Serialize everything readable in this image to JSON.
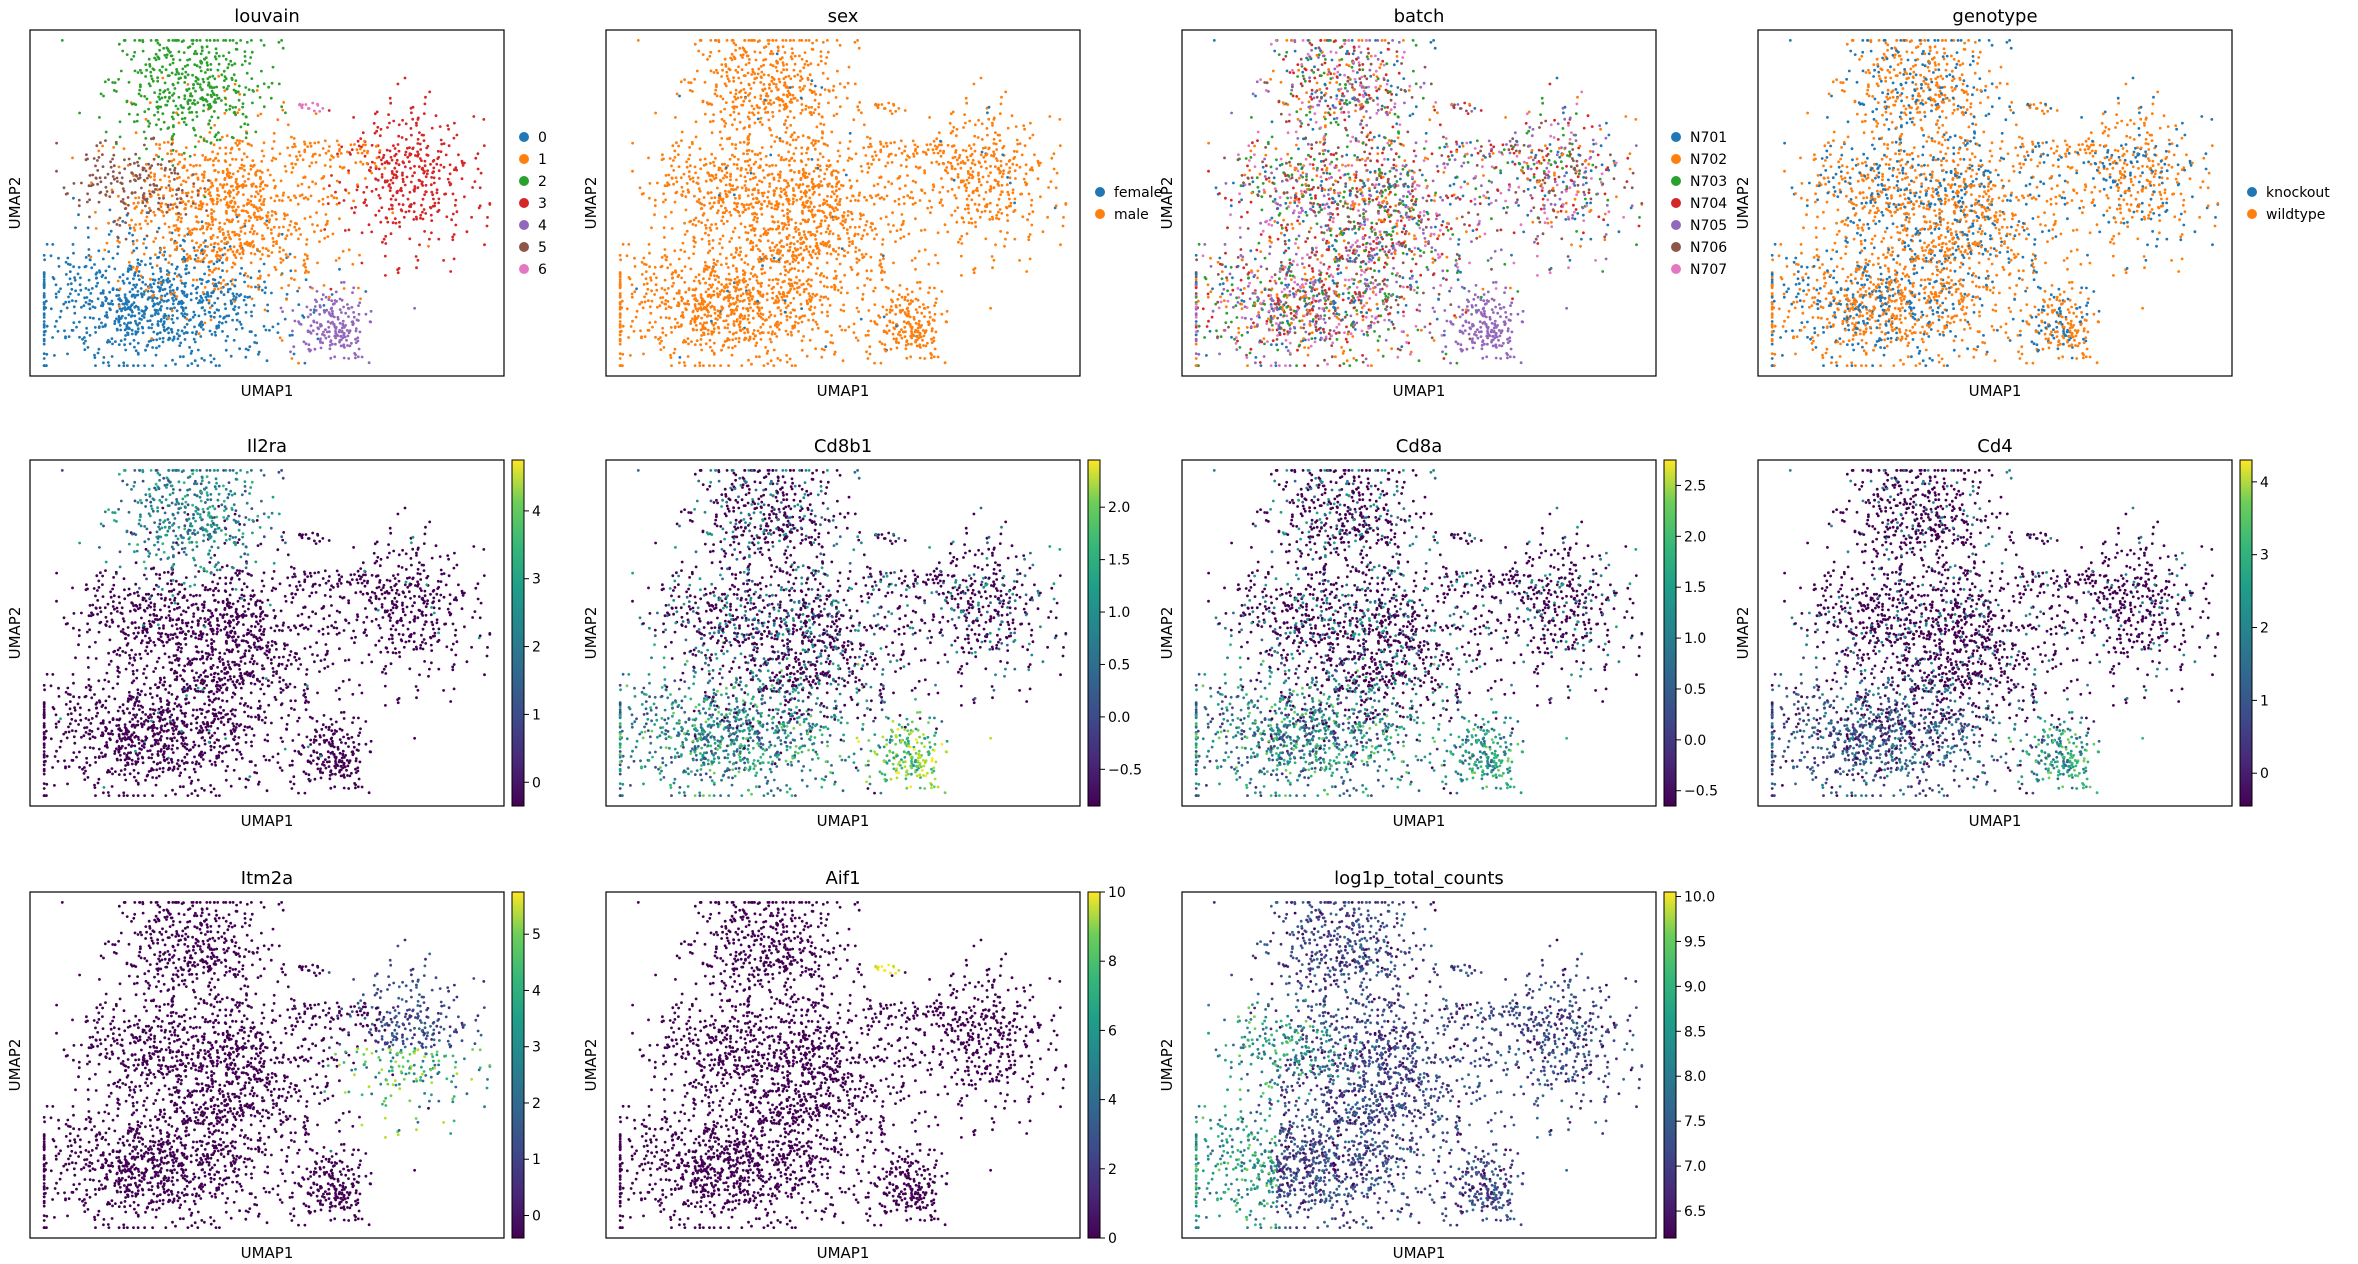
{
  "figure": {
    "panels": [
      {
        "title": "louvain",
        "type": "categorical",
        "xlabel": "UMAP1",
        "ylabel": "UMAP2",
        "legend": {
          "placement": "right",
          "items": [
            {
              "label": "0",
              "color": "#1f77b4"
            },
            {
              "label": "1",
              "color": "#ff7f0e"
            },
            {
              "label": "2",
              "color": "#2ca02c"
            },
            {
              "label": "3",
              "color": "#d62728"
            },
            {
              "label": "4",
              "color": "#9467bd"
            },
            {
              "label": "5",
              "color": "#8c564b"
            },
            {
              "label": "6",
              "color": "#e377c2"
            }
          ]
        }
      },
      {
        "title": "sex",
        "type": "categorical",
        "xlabel": "UMAP1",
        "ylabel": "UMAP2",
        "legend": {
          "placement": "right",
          "items": [
            {
              "label": "female",
              "color": "#1f77b4"
            },
            {
              "label": "male",
              "color": "#ff7f0e"
            }
          ]
        }
      },
      {
        "title": "batch",
        "type": "categorical",
        "xlabel": "UMAP1",
        "ylabel": "UMAP2",
        "legend": {
          "placement": "right",
          "items": [
            {
              "label": "N701",
              "color": "#1f77b4"
            },
            {
              "label": "N702",
              "color": "#ff7f0e"
            },
            {
              "label": "N703",
              "color": "#2ca02c"
            },
            {
              "label": "N704",
              "color": "#d62728"
            },
            {
              "label": "N705",
              "color": "#9467bd"
            },
            {
              "label": "N706",
              "color": "#8c564b"
            },
            {
              "label": "N707",
              "color": "#e377c2"
            }
          ]
        }
      },
      {
        "title": "genotype",
        "type": "categorical",
        "xlabel": "UMAP1",
        "ylabel": "UMAP2",
        "legend": {
          "placement": "right",
          "items": [
            {
              "label": "knockout",
              "color": "#1f77b4"
            },
            {
              "label": "wildtype",
              "color": "#ff7f0e"
            }
          ]
        }
      },
      {
        "title": "Il2ra",
        "type": "continuous",
        "xlabel": "UMAP1",
        "ylabel": "UMAP2",
        "colorbar": {
          "min": -0.35,
          "max": 4.75,
          "ticks": [
            "0",
            "1",
            "2",
            "3",
            "4"
          ],
          "tick_values": [
            0,
            1,
            2,
            3,
            4
          ]
        }
      },
      {
        "title": "Cd8b1",
        "type": "continuous",
        "xlabel": "UMAP1",
        "ylabel": "UMAP2",
        "colorbar": {
          "min": -0.85,
          "max": 2.45,
          "ticks": [
            "−0.5",
            "0.0",
            "0.5",
            "1.0",
            "1.5",
            "2.0"
          ],
          "tick_values": [
            -0.5,
            0,
            0.5,
            1.0,
            1.5,
            2.0
          ]
        }
      },
      {
        "title": "Cd8a",
        "type": "continuous",
        "xlabel": "UMAP1",
        "ylabel": "UMAP2",
        "colorbar": {
          "min": -0.65,
          "max": 2.75,
          "ticks": [
            "−0.5",
            "0.0",
            "0.5",
            "1.0",
            "1.5",
            "2.0",
            "2.5"
          ],
          "tick_values": [
            -0.5,
            0,
            0.5,
            1.0,
            1.5,
            2.0,
            2.5
          ]
        }
      },
      {
        "title": "Cd4",
        "type": "continuous",
        "xlabel": "UMAP1",
        "ylabel": "UMAP2",
        "colorbar": {
          "min": -0.45,
          "max": 4.3,
          "ticks": [
            "0",
            "1",
            "2",
            "3",
            "4"
          ],
          "tick_values": [
            0,
            1,
            2,
            3,
            4
          ]
        }
      },
      {
        "title": "Itm2a",
        "type": "continuous",
        "xlabel": "UMAP1",
        "ylabel": "UMAP2",
        "colorbar": {
          "min": -0.4,
          "max": 5.75,
          "ticks": [
            "0",
            "1",
            "2",
            "3",
            "4",
            "5"
          ],
          "tick_values": [
            0,
            1,
            2,
            3,
            4,
            5
          ]
        }
      },
      {
        "title": "Aif1",
        "type": "continuous",
        "xlabel": "UMAP1",
        "ylabel": "UMAP2",
        "colorbar": {
          "min": 0,
          "max": 10,
          "ticks": [
            "0",
            "2",
            "4",
            "6",
            "8",
            "10"
          ],
          "tick_values": [
            0,
            2,
            4,
            6,
            8,
            10
          ]
        }
      },
      {
        "title": "log1p_total_counts",
        "type": "continuous",
        "xlabel": "UMAP1",
        "ylabel": "UMAP2",
        "colorbar": {
          "min": 6.2,
          "max": 10.05,
          "ticks": [
            "6.5",
            "7.0",
            "7.5",
            "8.0",
            "8.5",
            "9.0",
            "9.5",
            "10.0"
          ],
          "tick_values": [
            6.5,
            7.0,
            7.5,
            8.0,
            8.5,
            9.0,
            9.5,
            10.0
          ]
        }
      }
    ]
  },
  "chart_data": {
    "type": "scatter",
    "description_free": true,
    "panel_count": 11,
    "grid": false,
    "colormap": "viridis"
  }
}
